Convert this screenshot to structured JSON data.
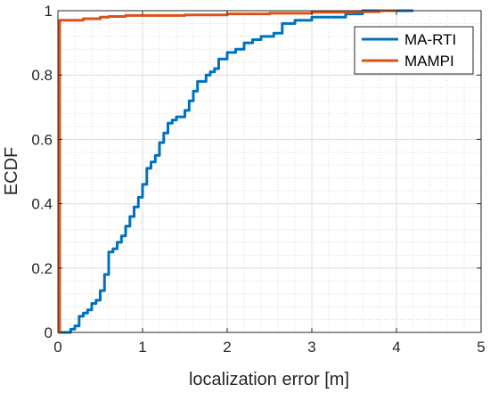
{
  "chart_data": {
    "type": "line",
    "xlabel": "localization error [m]",
    "ylabel": "ECDF",
    "xlim": [
      0,
      5
    ],
    "ylim": [
      0,
      1
    ],
    "x_ticks": [
      0,
      1,
      2,
      3,
      4,
      5
    ],
    "y_ticks": [
      0,
      0.2,
      0.4,
      0.6,
      0.8,
      1
    ],
    "x_tick_labels": [
      "0",
      "1",
      "2",
      "3",
      "4",
      "5"
    ],
    "y_tick_labels": [
      "0",
      "0.2",
      "0.4",
      "0.6",
      "0.8",
      "1"
    ],
    "grid": "major solid light grey, minor dotted",
    "legend_position": "top-right",
    "series": [
      {
        "name": "MA-RTI",
        "color": "#0072BD",
        "points": [
          [
            0.0,
            0.0
          ],
          [
            0.1,
            0.0
          ],
          [
            0.15,
            0.01
          ],
          [
            0.2,
            0.02
          ],
          [
            0.25,
            0.05
          ],
          [
            0.3,
            0.06
          ],
          [
            0.35,
            0.07
          ],
          [
            0.4,
            0.09
          ],
          [
            0.45,
            0.1
          ],
          [
            0.5,
            0.13
          ],
          [
            0.55,
            0.18
          ],
          [
            0.6,
            0.25
          ],
          [
            0.65,
            0.26
          ],
          [
            0.7,
            0.28
          ],
          [
            0.75,
            0.3
          ],
          [
            0.8,
            0.33
          ],
          [
            0.85,
            0.36
          ],
          [
            0.9,
            0.39
          ],
          [
            0.95,
            0.42
          ],
          [
            1.0,
            0.46
          ],
          [
            1.05,
            0.51
          ],
          [
            1.1,
            0.53
          ],
          [
            1.15,
            0.55
          ],
          [
            1.2,
            0.59
          ],
          [
            1.25,
            0.62
          ],
          [
            1.3,
            0.65
          ],
          [
            1.35,
            0.66
          ],
          [
            1.4,
            0.67
          ],
          [
            1.5,
            0.69
          ],
          [
            1.55,
            0.72
          ],
          [
            1.6,
            0.75
          ],
          [
            1.65,
            0.78
          ],
          [
            1.75,
            0.8
          ],
          [
            1.8,
            0.81
          ],
          [
            1.85,
            0.82
          ],
          [
            1.9,
            0.85
          ],
          [
            2.0,
            0.87
          ],
          [
            2.1,
            0.88
          ],
          [
            2.2,
            0.9
          ],
          [
            2.3,
            0.91
          ],
          [
            2.4,
            0.92
          ],
          [
            2.55,
            0.93
          ],
          [
            2.65,
            0.96
          ],
          [
            2.8,
            0.97
          ],
          [
            3.0,
            0.98
          ],
          [
            3.35,
            0.98
          ],
          [
            3.4,
            0.99
          ],
          [
            3.6,
            1.0
          ],
          [
            4.2,
            1.0
          ]
        ]
      },
      {
        "name": "MAMPI",
        "color": "#D95319",
        "points": [
          [
            0.0,
            0.0
          ],
          [
            0.02,
            0.97
          ],
          [
            0.3,
            0.975
          ],
          [
            0.5,
            0.98
          ],
          [
            0.6,
            0.982
          ],
          [
            0.8,
            0.985
          ],
          [
            1.0,
            0.985
          ],
          [
            1.5,
            0.987
          ],
          [
            2.0,
            0.99
          ],
          [
            2.5,
            0.992
          ],
          [
            3.0,
            0.995
          ],
          [
            3.5,
            0.997
          ],
          [
            3.8,
            1.0
          ],
          [
            4.0,
            1.0
          ]
        ]
      }
    ]
  }
}
